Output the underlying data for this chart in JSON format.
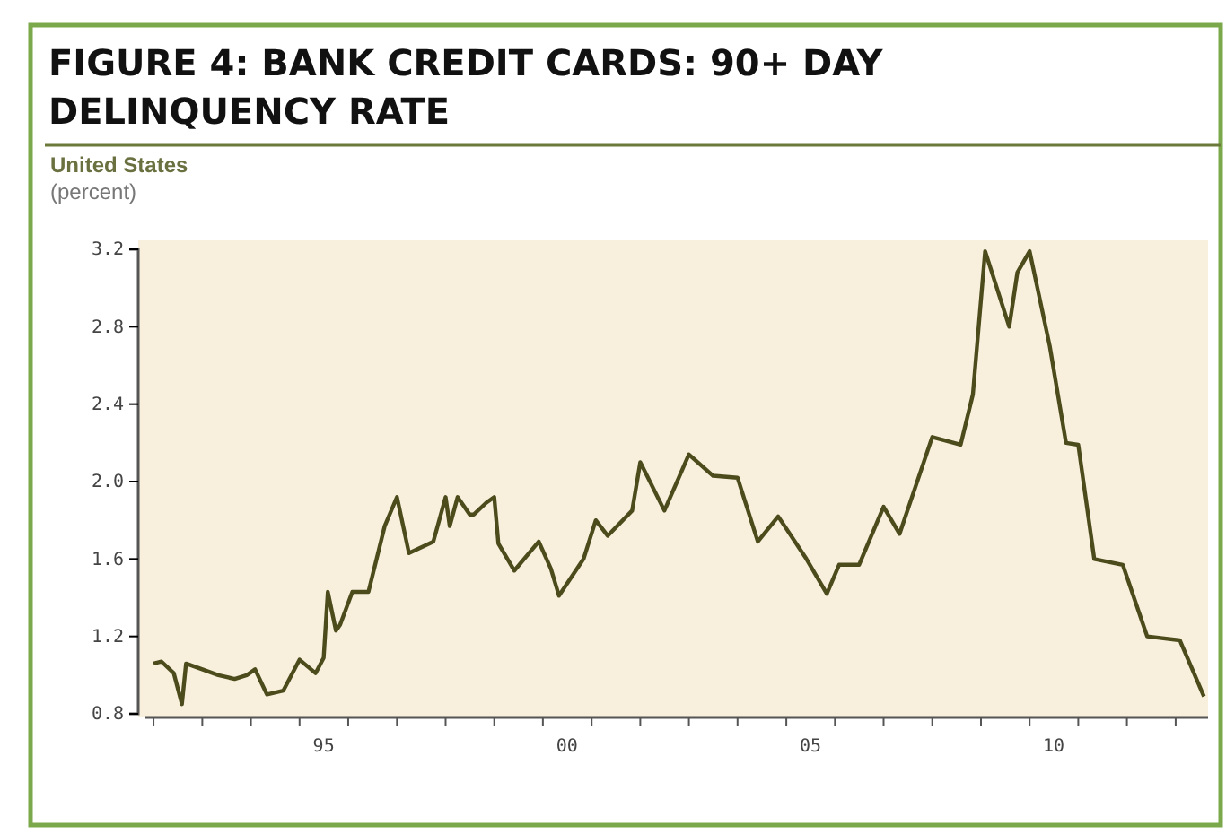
{
  "chart_data": {
    "type": "line",
    "title": "FIGURE 4: BANK CREDIT CARDS: 90+ DAY DELINQUENCY RATE",
    "subtitle": "United States",
    "ylabel": "(percent)",
    "series": [
      {
        "color": "#4b4b1c",
        "x": [
          "1992-01",
          "1992-03",
          "1992-06",
          "1992-08",
          "1992-09",
          "1993-01",
          "1993-05",
          "1993-09",
          "1993-12",
          "1994-02",
          "1994-05",
          "1994-09",
          "1995-01",
          "1995-05",
          "1995-07",
          "1995-08",
          "1995-10",
          "1995-11",
          "1996-02",
          "1996-06",
          "1996-10",
          "1997-01",
          "1997-04",
          "1997-10",
          "1998-01",
          "1998-02",
          "1998-04",
          "1998-07",
          "1998-08",
          "1998-11",
          "1999-01",
          "1999-02",
          "1999-06",
          "1999-12",
          "2000-03",
          "2000-05",
          "2000-11",
          "2001-02",
          "2001-05",
          "2001-11",
          "2002-01",
          "2002-07",
          "2003-01",
          "2003-07",
          "2004-01",
          "2004-06",
          "2004-11",
          "2005-06",
          "2005-11",
          "2006-02",
          "2006-07",
          "2007-01",
          "2007-05",
          "2008-01",
          "2008-08",
          "2008-11",
          "2009-02",
          "2009-08",
          "2009-10",
          "2010-01",
          "2010-06",
          "2010-10",
          "2011-01",
          "2011-05",
          "2011-12",
          "2012-06",
          "2013-02",
          "2013-08"
        ],
        "values": [
          1.06,
          1.07,
          1.01,
          0.85,
          1.06,
          1.03,
          1.0,
          0.98,
          1.0,
          1.03,
          0.9,
          0.92,
          1.08,
          1.01,
          1.09,
          1.43,
          1.23,
          1.26,
          1.43,
          1.43,
          1.77,
          1.92,
          1.63,
          1.69,
          1.92,
          1.77,
          1.92,
          1.83,
          1.83,
          1.89,
          1.92,
          1.68,
          1.54,
          1.69,
          1.55,
          1.41,
          1.6,
          1.8,
          1.72,
          1.85,
          2.1,
          1.85,
          2.14,
          2.03,
          2.02,
          1.69,
          1.82,
          1.6,
          1.42,
          1.57,
          1.57,
          1.87,
          1.73,
          2.23,
          2.19,
          2.45,
          3.19,
          2.8,
          3.08,
          3.19,
          2.7,
          2.2,
          2.19,
          1.6,
          1.57,
          1.2,
          1.18,
          0.89
        ]
      }
    ],
    "xlim": [
      "1991-11",
      "2013-09"
    ],
    "xticks": [
      {
        "value": "1992",
        "label": null
      },
      {
        "value": "1993",
        "label": null
      },
      {
        "value": "1994",
        "label": null
      },
      {
        "value": "1995",
        "label": null
      },
      {
        "value": "1995-07",
        "label": "95"
      },
      {
        "value": "1996",
        "label": null
      },
      {
        "value": "1997",
        "label": null
      },
      {
        "value": "1998",
        "label": null
      },
      {
        "value": "1999",
        "label": null
      },
      {
        "value": "2000",
        "label": null
      },
      {
        "value": "2000-07",
        "label": "00"
      },
      {
        "value": "2001",
        "label": null
      },
      {
        "value": "2002",
        "label": null
      },
      {
        "value": "2003",
        "label": null
      },
      {
        "value": "2004",
        "label": null
      },
      {
        "value": "2005",
        "label": null
      },
      {
        "value": "2005-07",
        "label": "05"
      },
      {
        "value": "2006",
        "label": null
      },
      {
        "value": "2007",
        "label": null
      },
      {
        "value": "2008",
        "label": null
      },
      {
        "value": "2009",
        "label": null
      },
      {
        "value": "2010",
        "label": null
      },
      {
        "value": "2010-07",
        "label": "10"
      },
      {
        "value": "2011",
        "label": null
      },
      {
        "value": "2012",
        "label": null
      },
      {
        "value": "2013",
        "label": null
      }
    ],
    "ylim": [
      0.8,
      3.2
    ],
    "yticks": [
      {
        "value": 0.8,
        "label": "0.8"
      },
      {
        "value": 1.2,
        "label": "1.2"
      },
      {
        "value": 1.6,
        "label": "1.6"
      },
      {
        "value": 2.0,
        "label": "2.0"
      },
      {
        "value": 2.4,
        "label": "2.4"
      },
      {
        "value": 2.8,
        "label": "2.8"
      },
      {
        "value": 3.2,
        "label": "3.2"
      }
    ],
    "grid": false
  }
}
